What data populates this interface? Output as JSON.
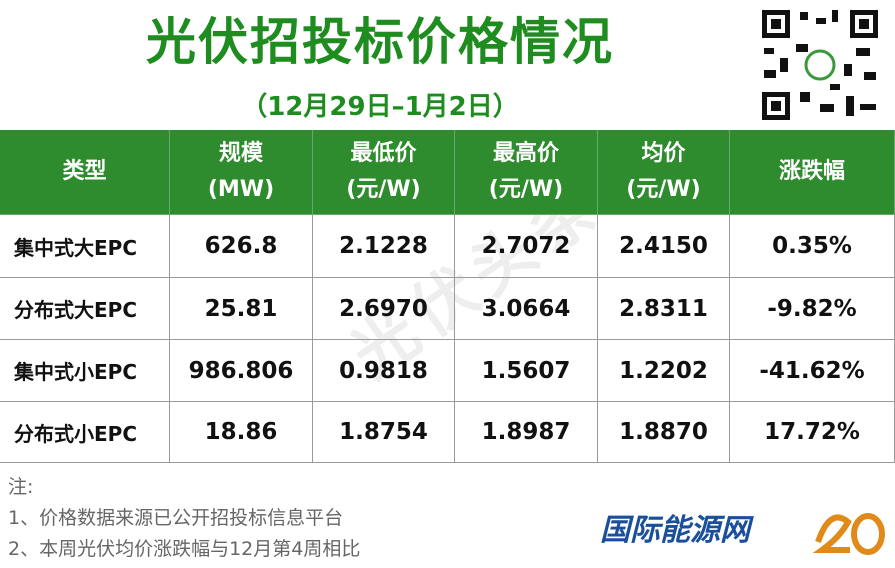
{
  "header": {
    "title": "光伏招投标价格情况",
    "subtitle": "（12月29日–1月2日）"
  },
  "table": {
    "columns": [
      [
        "类型"
      ],
      [
        "规模",
        "(MW)"
      ],
      [
        "最低价",
        "(元/W)"
      ],
      [
        "最高价",
        "(元/W)"
      ],
      [
        "均价",
        "(元/W)"
      ],
      [
        "涨跌幅"
      ]
    ],
    "rows": [
      [
        "集中式大EPC",
        "626.8",
        "2.1228",
        "2.7072",
        "2.4150",
        "0.35%"
      ],
      [
        "分布式大EPC",
        "25.81",
        "2.6970",
        "3.0664",
        "2.8311",
        "-9.82%"
      ],
      [
        "集中式小EPC",
        "986.806",
        "0.9818",
        "1.5607",
        "1.2202",
        "-41.62%"
      ],
      [
        "分布式小EPC",
        "18.86",
        "1.8754",
        "1.8987",
        "1.8870",
        "17.72%"
      ]
    ]
  },
  "notes": {
    "label": "注:",
    "items": [
      "1、价格数据来源已公开招投标信息平台",
      "2、本周光伏均价涨跌幅与12月第4周相比"
    ]
  },
  "watermark": "光伏头条",
  "logo": "国际能源网"
}
